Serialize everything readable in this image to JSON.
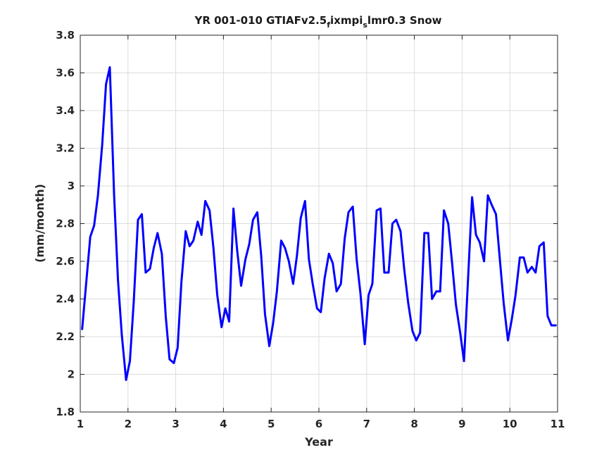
{
  "chart_data": {
    "type": "line",
    "title": "YR 001-010 GTIAFv2.5_fixmpi_slmr0.3 Snow",
    "title_parts": {
      "main": "YR 001-010 GTIAFv2.5",
      "sub1": "f",
      "mid": "ixmpi",
      "sub2": "s",
      "tail": "lmr0.3 Snow"
    },
    "xlabel": "Year",
    "ylabel": "(mm/month)",
    "xlim": [
      1,
      11
    ],
    "ylim": [
      1.8,
      3.8
    ],
    "xticks": [
      1,
      2,
      3,
      4,
      5,
      6,
      7,
      8,
      9,
      10,
      11
    ],
    "xtick_labels": [
      "1",
      "2",
      "3",
      "4",
      "5",
      "6",
      "7",
      "8",
      "9",
      "10",
      "11"
    ],
    "yticks": [
      1.8,
      2.0,
      2.2,
      2.4,
      2.6,
      2.8,
      3.0,
      3.2,
      3.4,
      3.6,
      3.8
    ],
    "ytick_labels": [
      "1.8",
      "2",
      "2.2",
      "2.4",
      "2.6",
      "2.8",
      "3",
      "3.2",
      "3.4",
      "3.6",
      "3.8"
    ],
    "grid": true,
    "series": [
      {
        "color": "#0000ff",
        "x": [
          1.04,
          1.12,
          1.21,
          1.29,
          1.37,
          1.46,
          1.54,
          1.62,
          1.71,
          1.79,
          1.87,
          1.96,
          2.04,
          2.12,
          2.21,
          2.29,
          2.37,
          2.46,
          2.54,
          2.62,
          2.71,
          2.79,
          2.87,
          2.96,
          3.04,
          3.12,
          3.21,
          3.29,
          3.37,
          3.46,
          3.54,
          3.62,
          3.71,
          3.79,
          3.87,
          3.96,
          4.04,
          4.12,
          4.21,
          4.29,
          4.37,
          4.46,
          4.54,
          4.62,
          4.71,
          4.79,
          4.87,
          4.96,
          5.04,
          5.12,
          5.21,
          5.29,
          5.37,
          5.46,
          5.54,
          5.62,
          5.71,
          5.79,
          5.87,
          5.96,
          6.04,
          6.12,
          6.21,
          6.29,
          6.37,
          6.46,
          6.54,
          6.62,
          6.71,
          6.79,
          6.87,
          6.96,
          7.04,
          7.12,
          7.21,
          7.29,
          7.37,
          7.46,
          7.54,
          7.62,
          7.71,
          7.79,
          7.87,
          7.96,
          8.04,
          8.12,
          8.21,
          8.29,
          8.37,
          8.46,
          8.54,
          8.62,
          8.71,
          8.79,
          8.87,
          8.96,
          9.04,
          9.12,
          9.21,
          9.29,
          9.37,
          9.46,
          9.54,
          9.62,
          9.71,
          9.79,
          9.87,
          9.96,
          10.04,
          10.12,
          10.21,
          10.29,
          10.37,
          10.46,
          10.54,
          10.62,
          10.71,
          10.79,
          10.87,
          10.96
        ],
        "y": [
          2.24,
          2.47,
          2.73,
          2.79,
          2.95,
          3.22,
          3.54,
          3.63,
          2.95,
          2.5,
          2.21,
          1.97,
          2.07,
          2.38,
          2.82,
          2.85,
          2.54,
          2.56,
          2.67,
          2.75,
          2.64,
          2.31,
          2.08,
          2.06,
          2.14,
          2.49,
          2.76,
          2.68,
          2.71,
          2.81,
          2.74,
          2.92,
          2.87,
          2.67,
          2.42,
          2.25,
          2.35,
          2.28,
          2.88,
          2.65,
          2.47,
          2.61,
          2.69,
          2.82,
          2.86,
          2.63,
          2.32,
          2.15,
          2.27,
          2.44,
          2.71,
          2.67,
          2.6,
          2.48,
          2.63,
          2.83,
          2.92,
          2.61,
          2.48,
          2.35,
          2.33,
          2.51,
          2.64,
          2.59,
          2.44,
          2.48,
          2.72,
          2.86,
          2.89,
          2.61,
          2.43,
          2.16,
          2.42,
          2.48,
          2.87,
          2.88,
          2.54,
          2.54,
          2.8,
          2.82,
          2.76,
          2.55,
          2.38,
          2.23,
          2.18,
          2.22,
          2.75,
          2.75,
          2.4,
          2.44,
          2.44,
          2.87,
          2.8,
          2.59,
          2.37,
          2.22,
          2.07,
          2.48,
          2.94,
          2.74,
          2.7,
          2.6,
          2.95,
          2.9,
          2.85,
          2.61,
          2.38,
          2.18,
          2.29,
          2.42,
          2.62,
          2.62,
          2.54,
          2.57,
          2.54,
          2.68,
          2.7,
          2.31,
          2.26,
          2.26
        ]
      }
    ]
  }
}
